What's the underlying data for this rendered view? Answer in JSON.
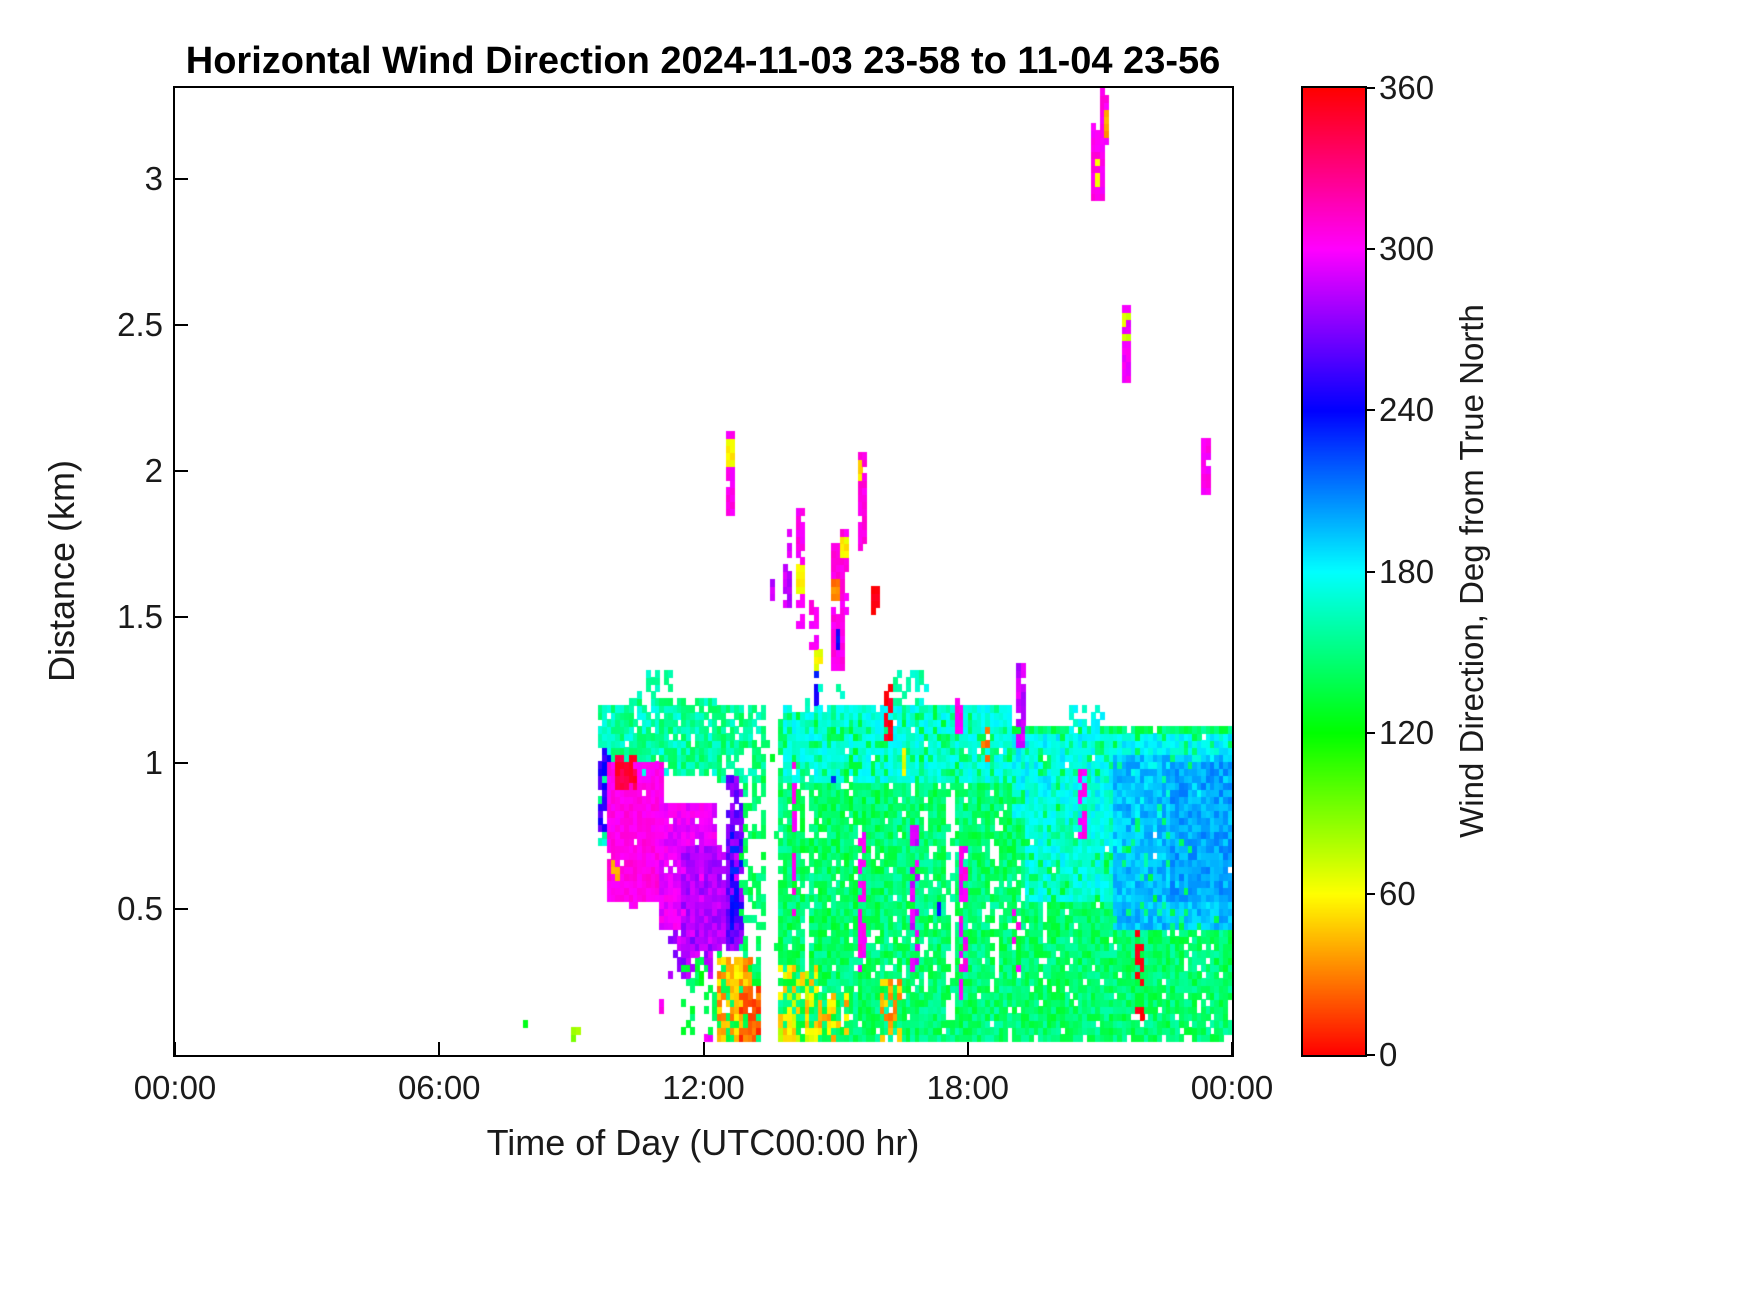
{
  "chart_data": {
    "type": "heatmap",
    "title": "Horizontal Wind Direction 2024-11-03 23-58 to 11-04 23-56",
    "xlabel": "Time of Day (UTC00:00 hr)",
    "ylabel": "Distance (km)",
    "colorbar_label": "Wind Direction, Deg from True North",
    "colormap": "hsv",
    "background": "#ffffff",
    "x_range_hours": [
      0,
      24
    ],
    "y_range_km": [
      0,
      3.312
    ],
    "deg_range": [
      0,
      360
    ],
    "x_ticks": [
      {
        "hour": 0,
        "label": "00:00"
      },
      {
        "hour": 6,
        "label": "06:00"
      },
      {
        "hour": 12,
        "label": "12:00"
      },
      {
        "hour": 18,
        "label": "18:00"
      },
      {
        "hour": 24,
        "label": "00:00"
      }
    ],
    "y_ticks": [
      {
        "km": 0.5,
        "label": "0.5"
      },
      {
        "km": 1,
        "label": "1"
      },
      {
        "km": 1.5,
        "label": "1.5"
      },
      {
        "km": 2,
        "label": "2"
      },
      {
        "km": 2.5,
        "label": "2.5"
      },
      {
        "km": 3,
        "label": "3"
      }
    ],
    "colorbar_ticks": [
      {
        "deg": 0,
        "label": "0"
      },
      {
        "deg": 60,
        "label": "60"
      },
      {
        "deg": 120,
        "label": "120"
      },
      {
        "deg": 180,
        "label": "180"
      },
      {
        "deg": 240,
        "label": "240"
      },
      {
        "deg": 300,
        "label": "300"
      },
      {
        "deg": 360,
        "label": "360"
      }
    ],
    "cell_hours": 0.1,
    "cell_km": 0.024,
    "patches_format": [
      "t0_hr",
      "t1_hr",
      "y0_km",
      "y1_km",
      "deg_min",
      "deg_max",
      "density"
    ],
    "patches": [
      [
        9.7,
        10.35,
        0.74,
        1.18,
        140,
        175,
        0.9
      ],
      [
        10.35,
        12.3,
        0.98,
        1.22,
        140,
        178,
        0.85
      ],
      [
        12.3,
        13.42,
        0.95,
        1.2,
        138,
        170,
        0.8
      ],
      [
        12.85,
        13.42,
        0.3,
        0.95,
        130,
        155,
        0.35
      ],
      [
        12.3,
        12.9,
        0.3,
        0.55,
        130,
        155,
        0.45
      ],
      [
        12.3,
        13.3,
        0.06,
        0.32,
        128,
        152,
        0.7
      ],
      [
        11.5,
        12.3,
        0.08,
        0.3,
        125,
        150,
        0.35
      ],
      [
        13.55,
        16.1,
        0.06,
        1.16,
        128,
        160,
        0.88
      ],
      [
        16.1,
        19.0,
        0.06,
        1.2,
        130,
        162,
        0.9
      ],
      [
        19.0,
        23.95,
        0.06,
        1.12,
        130,
        160,
        0.92
      ],
      [
        13.8,
        19.0,
        0.95,
        1.18,
        164,
        184,
        0.7
      ],
      [
        19.0,
        23.95,
        0.82,
        1.1,
        168,
        190,
        0.8
      ],
      [
        19.3,
        21.5,
        0.55,
        0.92,
        160,
        185,
        0.8
      ],
      [
        21.3,
        23.95,
        0.45,
        1.02,
        184,
        206,
        0.85
      ],
      [
        22.6,
        23.95,
        0.55,
        1.0,
        190,
        212,
        0.9
      ],
      [
        14.3,
        15.15,
        1.14,
        1.27,
        150,
        175,
        0.4
      ],
      [
        16.3,
        17.1,
        1.16,
        1.3,
        150,
        178,
        0.45
      ],
      [
        10.6,
        11.3,
        1.2,
        1.3,
        148,
        172,
        0.3
      ],
      [
        20.3,
        21.1,
        1.1,
        1.2,
        165,
        185,
        0.35
      ],
      [
        9.7,
        9.88,
        0.78,
        1.08,
        238,
        268,
        0.6
      ],
      [
        9.85,
        11.1,
        0.55,
        1.0,
        298,
        312,
        0.97
      ],
      [
        10.05,
        10.5,
        0.92,
        1.01,
        338,
        356,
        0.9
      ],
      [
        11.1,
        12.3,
        0.45,
        0.85,
        288,
        305,
        0.95
      ],
      [
        11.6,
        12.75,
        0.38,
        0.72,
        272,
        292,
        0.93
      ],
      [
        12.5,
        12.85,
        0.4,
        0.95,
        256,
        280,
        0.8
      ],
      [
        12.68,
        12.85,
        0.45,
        0.75,
        230,
        252,
        0.5
      ],
      [
        11.25,
        12.2,
        0.28,
        0.42,
        268,
        295,
        0.5
      ],
      [
        10.3,
        10.5,
        0.44,
        0.56,
        298,
        310,
        0.5
      ],
      [
        9.95,
        10.05,
        0.6,
        0.66,
        25,
        45,
        0.7
      ],
      [
        12.3,
        13.1,
        0.05,
        0.32,
        25,
        60,
        0.75
      ],
      [
        12.8,
        13.3,
        0.05,
        0.22,
        8,
        40,
        0.85
      ],
      [
        13.55,
        14.6,
        0.05,
        0.3,
        40,
        78,
        0.5
      ],
      [
        14.6,
        15.3,
        0.05,
        0.2,
        30,
        62,
        0.4
      ],
      [
        16.05,
        16.45,
        0.05,
        0.25,
        25,
        55,
        0.5
      ],
      [
        13.42,
        13.68,
        0.0,
        1.3,
        -1,
        -1,
        0.95
      ],
      [
        17.5,
        17.66,
        0.1,
        0.9,
        -1,
        -1,
        0.75
      ],
      [
        14.33,
        14.4,
        0.3,
        0.95,
        -1,
        -1,
        0.6
      ],
      [
        18.55,
        18.65,
        0.2,
        0.8,
        -1,
        -1,
        0.5
      ],
      [
        14.0,
        14.08,
        0.5,
        1.0,
        295,
        310,
        0.7
      ],
      [
        15.55,
        15.63,
        0.3,
        0.75,
        295,
        310,
        0.6
      ],
      [
        16.75,
        16.83,
        0.3,
        0.8,
        280,
        300,
        0.5
      ],
      [
        17.9,
        17.98,
        0.15,
        0.7,
        290,
        310,
        0.5
      ],
      [
        20.55,
        20.63,
        0.75,
        0.98,
        295,
        310,
        0.7
      ],
      [
        21.9,
        21.98,
        0.12,
        0.42,
        352,
        360,
        0.6
      ],
      [
        14.9,
        15.0,
        0.85,
        1.0,
        226,
        246,
        0.4
      ],
      [
        17.3,
        17.38,
        0.45,
        0.6,
        230,
        250,
        0.4
      ],
      [
        16.12,
        16.28,
        1.1,
        1.26,
        348,
        360,
        0.6
      ],
      [
        18.35,
        18.45,
        1.02,
        1.12,
        20,
        40,
        0.5
      ],
      [
        16.5,
        16.56,
        0.95,
        1.1,
        55,
        75,
        0.5
      ],
      [
        19.05,
        19.12,
        0.3,
        0.5,
        295,
        310,
        0.5
      ],
      [
        12.55,
        12.68,
        1.86,
        2.12,
        296,
        310,
        0.95
      ],
      [
        12.58,
        12.66,
        2.03,
        2.09,
        50,
        66,
        1
      ],
      [
        13.88,
        13.98,
        1.54,
        1.68,
        278,
        295,
        0.9
      ],
      [
        13.92,
        13.99,
        1.72,
        1.78,
        288,
        300,
        0.8
      ],
      [
        13.5,
        13.57,
        1.56,
        1.62,
        280,
        295,
        0.9
      ],
      [
        14.15,
        14.3,
        1.48,
        1.86,
        296,
        310,
        0.7
      ],
      [
        14.19,
        14.27,
        1.6,
        1.66,
        52,
        66,
        1
      ],
      [
        14.45,
        14.56,
        1.4,
        1.56,
        296,
        310,
        0.7
      ],
      [
        14.5,
        14.58,
        1.22,
        1.32,
        228,
        248,
        0.7
      ],
      [
        14.55,
        14.63,
        1.33,
        1.39,
        55,
        72,
        0.8
      ],
      [
        14.92,
        15.12,
        1.33,
        1.74,
        298,
        312,
        0.95
      ],
      [
        14.99,
        15.06,
        1.56,
        1.61,
        22,
        38,
        1
      ],
      [
        15.03,
        15.1,
        1.4,
        1.45,
        230,
        250,
        0.8
      ],
      [
        15.16,
        15.28,
        1.52,
        1.8,
        298,
        312,
        0.6
      ],
      [
        15.2,
        15.27,
        1.71,
        1.77,
        50,
        66,
        1
      ],
      [
        15.5,
        15.62,
        1.73,
        2.06,
        298,
        312,
        0.9
      ],
      [
        15.53,
        15.6,
        1.99,
        2.04,
        45,
        60,
        1
      ],
      [
        15.84,
        15.93,
        1.52,
        1.6,
        350,
        360,
        0.9
      ],
      [
        17.78,
        17.85,
        1.12,
        1.22,
        295,
        310,
        0.6
      ],
      [
        19.18,
        19.3,
        1.06,
        1.34,
        278,
        298,
        0.85
      ],
      [
        20.88,
        21.06,
        2.93,
        3.17,
        296,
        310,
        0.9
      ],
      [
        20.93,
        21.0,
        2.99,
        3.05,
        55,
        70,
        0.9
      ],
      [
        21.08,
        21.2,
        3.08,
        3.3,
        296,
        310,
        0.85
      ],
      [
        21.11,
        21.18,
        3.16,
        3.22,
        25,
        45,
        0.9
      ],
      [
        21.54,
        21.66,
        2.32,
        2.56,
        292,
        306,
        0.9
      ],
      [
        21.56,
        21.63,
        2.47,
        2.53,
        62,
        80,
        0.9
      ],
      [
        23.34,
        23.46,
        1.92,
        2.1,
        296,
        310,
        0.95
      ],
      [
        7.9,
        8.0,
        0.05,
        0.1,
        118,
        138,
        0.8
      ],
      [
        9.05,
        9.15,
        0.05,
        0.1,
        72,
        92,
        0.8
      ],
      [
        11.0,
        11.08,
        0.12,
        0.18,
        295,
        310,
        0.7
      ],
      [
        11.85,
        11.95,
        0.25,
        0.32,
        120,
        140,
        0.7
      ],
      [
        12.05,
        12.12,
        0.05,
        0.12,
        295,
        310,
        0.6
      ]
    ]
  }
}
